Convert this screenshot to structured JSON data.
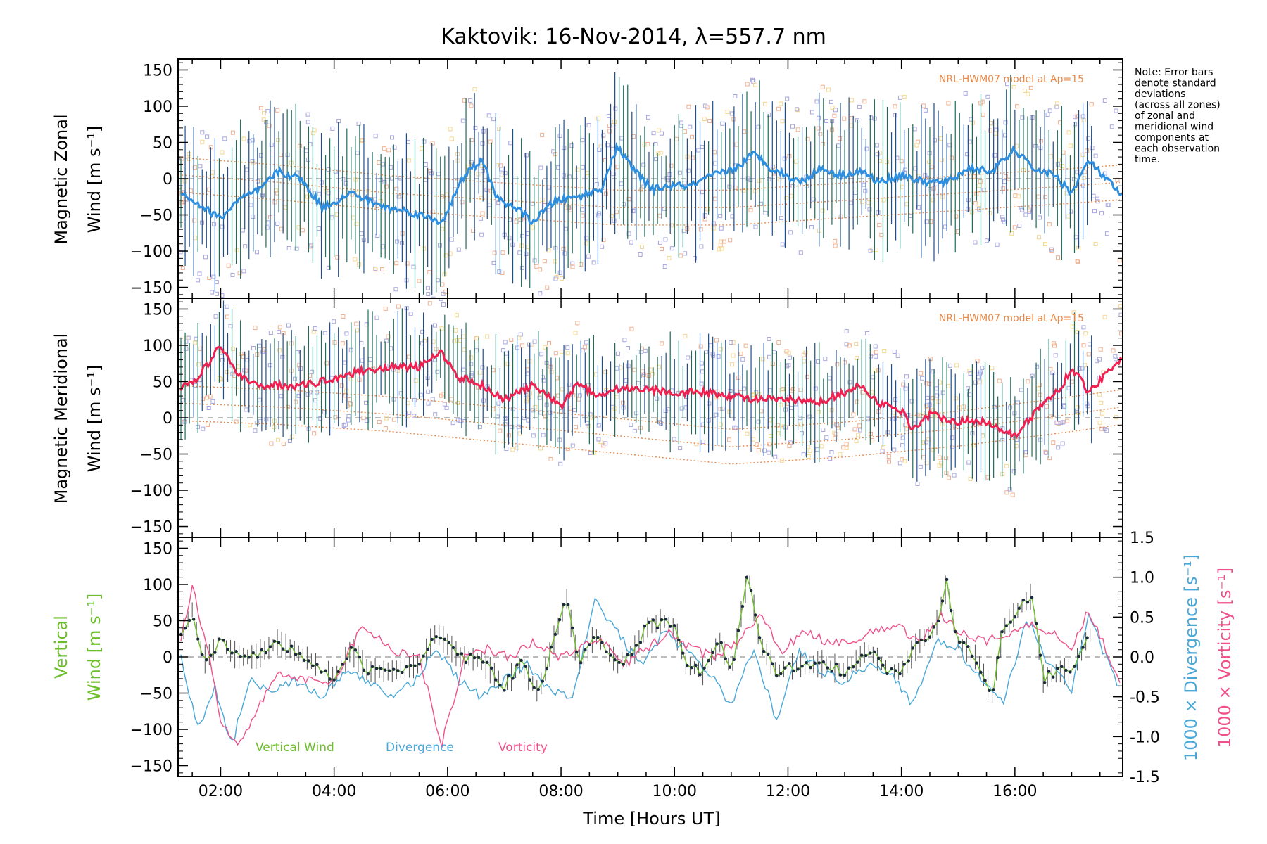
{
  "chart_data": [
    {
      "type": "line",
      "title": "Kaktovik: 16-Nov-2014, λ=557.7 nm",
      "ylabel_line1": "Magnetic Zonal",
      "ylabel_line2": "Wind [m s⁻¹]",
      "model_label": "NRL-HWM07 model at Ap=15",
      "xlim": [
        1.25,
        17.9
      ],
      "ylim": [
        -165,
        165
      ],
      "yticks": [
        -150,
        -100,
        -50,
        0,
        50,
        100,
        150
      ],
      "series": [
        {
          "name": "Zonal Wind",
          "color": "#2e8fe0",
          "x": [
            1.3,
            1.6,
            2.0,
            2.3,
            2.7,
            3.0,
            3.4,
            3.8,
            4.3,
            4.9,
            5.3,
            5.9,
            6.3,
            6.6,
            6.9,
            7.2,
            7.5,
            7.9,
            8.3,
            8.7,
            9.0,
            9.2,
            9.6,
            9.9,
            10.3,
            10.7,
            11.1,
            11.4,
            11.7,
            12.2,
            12.6,
            12.9,
            13.3,
            13.6,
            14.0,
            14.4,
            14.8,
            15.2,
            15.6,
            16.0,
            16.3,
            16.7,
            17.0,
            17.3,
            17.9
          ],
          "y": [
            -20,
            -35,
            -55,
            -30,
            -15,
            10,
            0,
            -40,
            -20,
            -40,
            -45,
            -60,
            5,
            25,
            -30,
            -40,
            -60,
            -30,
            -25,
            -15,
            45,
            20,
            -15,
            -10,
            -10,
            5,
            15,
            35,
            15,
            -5,
            15,
            5,
            10,
            -5,
            5,
            -5,
            -5,
            15,
            10,
            40,
            15,
            5,
            -20,
            25,
            -25
          ]
        },
        {
          "name": "Model",
          "color": "#e8894a",
          "x": [
            1.3,
            3.0,
            5.0,
            7.0,
            9.0,
            11.0,
            13.0,
            15.0,
            17.0,
            17.9
          ],
          "y": [
            5,
            -5,
            -20,
            -30,
            -40,
            -40,
            -30,
            -20,
            -10,
            -5
          ]
        }
      ],
      "error_bar_sigma": 80,
      "scatter_color": "#a8a8e0",
      "note": [
        "Note: Error bars",
        "denote standard",
        "deviations",
        "(across all zones)",
        "of zonal and",
        "meridional wind",
        "components at",
        "each observation",
        "time."
      ]
    },
    {
      "type": "line",
      "ylabel_line1": "Magnetic Meridional",
      "ylabel_line2": "Wind [m s⁻¹]",
      "model_label": "NRL-HWM07 model at Ap=15",
      "xlim": [
        1.25,
        17.9
      ],
      "ylim": [
        -165,
        165
      ],
      "yticks": [
        -150,
        -100,
        -50,
        0,
        50,
        100,
        150
      ],
      "series": [
        {
          "name": "Meridional Wind",
          "color": "#f02050",
          "x": [
            1.3,
            1.6,
            2.0,
            2.3,
            2.6,
            3.0,
            3.5,
            4.0,
            4.5,
            5.0,
            5.5,
            5.9,
            6.2,
            6.5,
            7.0,
            7.5,
            8.0,
            8.3,
            8.6,
            9.0,
            9.5,
            10.0,
            10.5,
            11.0,
            11.5,
            12.0,
            12.5,
            13.0,
            13.3,
            13.6,
            14.0,
            14.2,
            14.5,
            15.0,
            15.5,
            16.0,
            16.5,
            16.8,
            17.0,
            17.3,
            17.9
          ],
          "y": [
            40,
            55,
            100,
            60,
            45,
            45,
            45,
            55,
            65,
            70,
            70,
            90,
            55,
            50,
            25,
            45,
            15,
            50,
            30,
            40,
            40,
            35,
            35,
            30,
            25,
            25,
            20,
            35,
            45,
            20,
            10,
            -15,
            5,
            -5,
            -5,
            -25,
            20,
            40,
            70,
            35,
            85
          ]
        },
        {
          "name": "Model",
          "color": "#e8894a",
          "x": [
            1.3,
            3.0,
            5.0,
            7.0,
            9.0,
            11.0,
            13.0,
            15.0,
            17.0,
            17.9
          ],
          "y": [
            20,
            15,
            5,
            -10,
            -25,
            -40,
            -30,
            -15,
            5,
            15
          ]
        }
      ],
      "error_bar_sigma": 60,
      "scatter_color": "#a8a8e0"
    },
    {
      "type": "line",
      "ylabel_line1": "Vertical",
      "ylabel_line2": "Wind [m s⁻¹]",
      "right_label_div": "1000 × Divergence [s⁻¹]",
      "right_label_vort": "1000 × Vorticity [s⁻¹]",
      "xlabel": "Time [Hours UT]",
      "xticks": [
        "02:00",
        "04:00",
        "06:00",
        "08:00",
        "10:00",
        "12:00",
        "14:00",
        "16:00"
      ],
      "xtick_values": [
        2,
        4,
        6,
        8,
        10,
        12,
        14,
        16
      ],
      "xlim": [
        1.25,
        17.9
      ],
      "ylim": [
        -165,
        165
      ],
      "yticks": [
        -150,
        -100,
        -50,
        0,
        50,
        100,
        150
      ],
      "y2lim": [
        -1.5,
        1.5
      ],
      "y2ticks": [
        "-1.5",
        "-1.0",
        "-0.5",
        "0.0",
        "0.5",
        "1.0",
        "1.5"
      ],
      "series": [
        {
          "name": "Vertical Wind",
          "color": "#6cbf2a",
          "x": [
            1.3,
            1.5,
            1.7,
            2.0,
            2.3,
            2.6,
            3.0,
            3.5,
            4.0,
            4.3,
            4.6,
            5.0,
            5.5,
            5.8,
            6.2,
            6.6,
            7.0,
            7.3,
            7.6,
            7.9,
            8.1,
            8.3,
            8.6,
            9.0,
            9.3,
            9.5,
            9.8,
            10.0,
            10.2,
            10.5,
            10.8,
            11.0,
            11.3,
            11.5,
            11.8,
            12.2,
            12.6,
            13.0,
            13.4,
            13.8,
            14.0,
            14.3,
            14.6,
            14.8,
            15.0,
            15.3,
            15.6,
            15.8,
            16.0,
            16.3,
            16.5,
            16.8,
            17.0,
            17.3
          ],
          "y": [
            30,
            65,
            -5,
            20,
            0,
            0,
            20,
            0,
            -30,
            10,
            -20,
            -20,
            -10,
            35,
            0,
            -5,
            -40,
            -10,
            -50,
            30,
            80,
            -10,
            30,
            -10,
            10,
            40,
            50,
            40,
            -10,
            -20,
            20,
            -20,
            115,
            20,
            -20,
            -10,
            -10,
            -20,
            10,
            -20,
            -20,
            20,
            40,
            100,
            20,
            0,
            -50,
            40,
            60,
            85,
            -30,
            -20,
            -20,
            30
          ]
        },
        {
          "name": "Divergence",
          "color": "#4aa8d8",
          "x": [
            1.3,
            1.6,
            1.9,
            2.2,
            2.5,
            2.9,
            3.3,
            3.8,
            4.2,
            4.6,
            5.0,
            5.4,
            5.8,
            6.2,
            6.6,
            7.0,
            7.4,
            7.8,
            8.2,
            8.6,
            9.0,
            9.4,
            9.8,
            10.2,
            10.6,
            11.0,
            11.4,
            11.8,
            12.2,
            12.6,
            13.0,
            13.4,
            13.8,
            14.2,
            14.6,
            15.0,
            15.4,
            15.8,
            16.2,
            16.6,
            17.0,
            17.3,
            17.9
          ],
          "y": [
            0.0,
            -0.9,
            -0.4,
            -1.1,
            -0.3,
            -0.4,
            -0.3,
            -0.5,
            -0.2,
            -0.3,
            -0.5,
            -0.3,
            0.1,
            -0.3,
            -0.5,
            -0.3,
            -0.1,
            -0.4,
            -0.5,
            0.7,
            0.3,
            -0.1,
            0.3,
            0.1,
            -0.2,
            -0.6,
            0.1,
            -0.8,
            0.1,
            -0.2,
            -0.3,
            -0.1,
            -0.2,
            -0.6,
            0.2,
            0.1,
            -0.3,
            -0.6,
            0.5,
            -0.1,
            -0.4,
            0.5,
            -0.5
          ]
        },
        {
          "name": "Vorticity",
          "color": "#f0508a",
          "x": [
            1.3,
            1.5,
            1.8,
            2.0,
            2.3,
            2.7,
            3.0,
            3.5,
            4.0,
            4.5,
            5.0,
            5.5,
            5.9,
            6.3,
            6.7,
            7.1,
            7.5,
            7.9,
            8.3,
            8.7,
            9.1,
            9.5,
            9.9,
            10.3,
            10.7,
            11.1,
            11.5,
            11.9,
            12.3,
            12.7,
            13.1,
            13.5,
            13.9,
            14.3,
            14.7,
            15.1,
            15.5,
            15.9,
            16.3,
            16.7,
            17.0,
            17.3,
            17.6,
            17.9
          ],
          "y": [
            0.2,
            0.9,
            0.0,
            -0.8,
            -1.1,
            -0.6,
            -0.2,
            -0.3,
            -0.3,
            0.4,
            0.1,
            0.0,
            -1.1,
            0.0,
            0.1,
            0.0,
            0.2,
            0.0,
            0.1,
            0.2,
            -0.1,
            0.1,
            0.3,
            0.1,
            0.0,
            0.2,
            0.5,
            0.1,
            0.3,
            0.2,
            0.2,
            0.3,
            0.4,
            0.2,
            0.5,
            0.3,
            0.2,
            0.3,
            0.4,
            0.3,
            0.1,
            0.6,
            0.1,
            -0.4
          ]
        }
      ],
      "legend": [
        {
          "label": "Vertical Wind",
          "color": "#6cbf2a"
        },
        {
          "label": "Divergence",
          "color": "#4aa8d8"
        },
        {
          "label": "Vorticity",
          "color": "#f0508a"
        }
      ]
    }
  ]
}
